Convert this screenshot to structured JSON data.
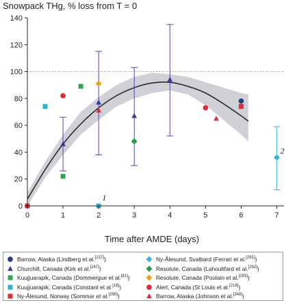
{
  "chart_data": {
    "type": "scatter",
    "title": "Snowpack THg, % loss from T = 0",
    "xlabel": "Time after AMDE (days)",
    "ylabel": "",
    "xlim": [
      0,
      7.2
    ],
    "ylim": [
      0,
      140
    ],
    "xticks": [
      "0",
      "1",
      "2",
      "3",
      "4",
      "5",
      "6",
      "7"
    ],
    "yticks": [
      "0",
      "20",
      "40",
      "60",
      "80",
      "100",
      "120",
      "140"
    ],
    "reference_line_y": 100,
    "fit": {
      "x": [
        0,
        0.5,
        1,
        1.5,
        2,
        2.5,
        3,
        3.5,
        4,
        4.5,
        5,
        5.5,
        6,
        6.2
      ],
      "mid": [
        5,
        27,
        46,
        61,
        73,
        82,
        88,
        91.5,
        92,
        89,
        84,
        76,
        67,
        63
      ],
      "upper": [
        10,
        33,
        53,
        70,
        81,
        90,
        96,
        99,
        98,
        96,
        92,
        88,
        84,
        83
      ],
      "lower": [
        0,
        21,
        38,
        53,
        64,
        74,
        80,
        84,
        86,
        83,
        75,
        64,
        53,
        48
      ]
    },
    "series": [
      {
        "name": "Barrow, Alaska (Lindberg et al.",
        "ref": "[237]",
        "color": "#2b3a8c",
        "shape": "circle",
        "points": [
          [
            6.0,
            78
          ]
        ]
      },
      {
        "name": "Churchill, Canada (Kirk et al.",
        "ref": "[247]",
        "color": "#3a3aa0",
        "shape": "triangle",
        "points": [
          [
            1.0,
            46
          ],
          [
            2.0,
            77
          ],
          [
            3.0,
            67
          ],
          [
            4.0,
            94
          ]
        ]
      },
      {
        "name": "Kuujjuarapik, Canada (Dommergue et al.",
        "ref": "[81]",
        "color": "#2aa850",
        "shape": "square",
        "points": [
          [
            1.0,
            22
          ],
          [
            1.5,
            89
          ]
        ]
      },
      {
        "name": "Kuujjuarapik, Canada (Constant et al.",
        "ref": "[16]",
        "color": "#2bb3d6",
        "shape": "square",
        "points": [
          [
            0.5,
            74
          ],
          [
            2.0,
            0
          ]
        ]
      },
      {
        "name": "Ny-Ålesund, Norway (Sommar et al.",
        "ref": "[290]",
        "color": "#e02b3a",
        "shape": "square",
        "points": [
          [
            0.0,
            0
          ],
          [
            6.0,
            74
          ]
        ]
      },
      {
        "name": "Ny-Ålesund, Svalbard (Ferrari et al.",
        "ref": "[291]",
        "color": "#39b5d8",
        "shape": "diamond",
        "points": [
          [
            7.0,
            36
          ]
        ]
      },
      {
        "name": "Resolute, Canada (Lahoutifard et al.",
        "ref": "[292]",
        "color": "#2a9a4a",
        "shape": "diamond",
        "points": [
          [
            3.0,
            48
          ]
        ]
      },
      {
        "name": "Resolute, Canada (Poulain et al.",
        "ref": "[293]",
        "color": "#f0a020",
        "shape": "diamond",
        "points": [
          [
            2.0,
            91
          ]
        ]
      },
      {
        "name": "Alert, Canada (St Louis et al.",
        "ref": "[218]",
        "color": "#e02b3a",
        "shape": "circle",
        "points": [
          [
            1.0,
            82
          ],
          [
            5.0,
            73
          ]
        ]
      },
      {
        "name": "Barrow, Alaska (Johnson et al.",
        "ref": "[248]",
        "color": "#e02b3a",
        "shape": "triangle",
        "points": [
          [
            2.0,
            71
          ],
          [
            5.3,
            65
          ]
        ]
      }
    ],
    "error_bars": [
      {
        "x": 1.0,
        "low": 26,
        "high": 66,
        "color": "#4a4aa8"
      },
      {
        "x": 2.0,
        "low": 38,
        "high": 115,
        "color": "#4a4aa8"
      },
      {
        "x": 3.0,
        "low": 30,
        "high": 103,
        "color": "#4a4aa8"
      },
      {
        "x": 4.0,
        "low": 52,
        "high": 135,
        "color": "#4a4aa8"
      },
      {
        "x": 7.0,
        "low": 12,
        "high": 59,
        "color": "#39b5d8"
      }
    ],
    "annotations": [
      {
        "text": "1",
        "x": 2.1,
        "y": 4
      },
      {
        "text": "2",
        "x": 7.1,
        "y": 39
      }
    ],
    "legend_close": ")"
  }
}
